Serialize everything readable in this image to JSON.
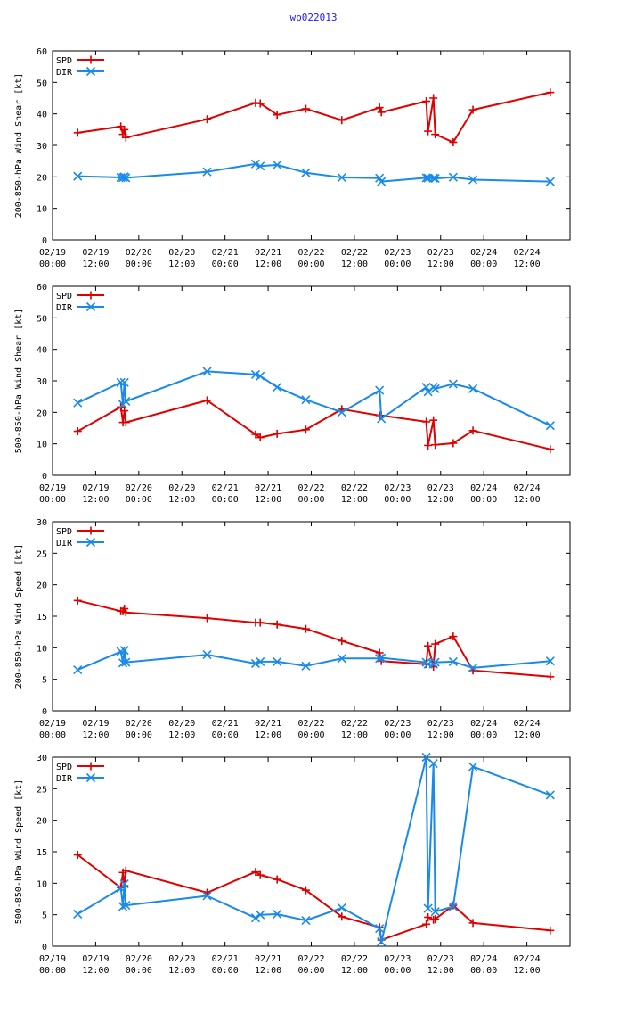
{
  "title": "wp022013",
  "colors": {
    "spd": "#e00000",
    "dir": "#1a8ae8",
    "axis": "#000000",
    "title": "#1a1aff"
  },
  "x_axis": {
    "min": 0,
    "max": 144,
    "ticks": [
      {
        "value": 0,
        "date": "02/19",
        "time": "00:00"
      },
      {
        "value": 12,
        "date": "02/19",
        "time": "12:00"
      },
      {
        "value": 24,
        "date": "02/20",
        "time": "00:00"
      },
      {
        "value": 36,
        "date": "02/20",
        "time": "12:00"
      },
      {
        "value": 48,
        "date": "02/21",
        "time": "00:00"
      },
      {
        "value": 60,
        "date": "02/21",
        "time": "12:00"
      },
      {
        "value": 72,
        "date": "02/22",
        "time": "00:00"
      },
      {
        "value": 84,
        "date": "02/22",
        "time": "12:00"
      },
      {
        "value": 96,
        "date": "02/23",
        "time": "00:00"
      },
      {
        "value": 108,
        "date": "02/23",
        "time": "12:00"
      },
      {
        "value": 120,
        "date": "02/24",
        "time": "00:00"
      },
      {
        "value": 132,
        "date": "02/24",
        "time": "12:00"
      }
    ]
  },
  "chart_data": [
    {
      "type": "line",
      "ylabel": "200-850-hPa Wind Shear [kt]",
      "ylim": [
        0,
        60
      ],
      "yticks": [
        0,
        10,
        20,
        30,
        40,
        50,
        60
      ],
      "legend": [
        "SPD",
        "DIR"
      ],
      "series": [
        {
          "name": "SPD",
          "marker": "plus",
          "x": [
            7,
            19,
            19.6,
            20,
            20.4,
            43,
            56.5,
            57.8,
            62.5,
            70.5,
            80.5,
            91,
            91.5,
            104,
            104.5,
            106,
            106.5,
            111.5,
            117,
            138.5
          ],
          "y": [
            34,
            36,
            33.5,
            35,
            32.5,
            38.3,
            43.5,
            43.3,
            39.7,
            41.6,
            38,
            42,
            40.5,
            44,
            34.5,
            45,
            33.5,
            31,
            41.3,
            46.8
          ]
        },
        {
          "name": "DIR",
          "marker": "x",
          "x": [
            7,
            19,
            19.6,
            20,
            20.4,
            43,
            56.5,
            57.8,
            62.5,
            70.5,
            80.5,
            91,
            91.5,
            104,
            104.5,
            106,
            106.5,
            111.5,
            117,
            138.5
          ],
          "y": [
            20.2,
            19.8,
            19.8,
            20,
            19.7,
            21.6,
            24.1,
            23.4,
            23.8,
            21.3,
            19.8,
            19.6,
            18.5,
            19.7,
            19.6,
            19.6,
            19.5,
            19.9,
            19.1,
            18.5
          ]
        }
      ]
    },
    {
      "type": "line",
      "ylabel": "500-850-hPa Wind Shear [kt]",
      "ylim": [
        0,
        60
      ],
      "yticks": [
        0,
        10,
        20,
        30,
        40,
        50,
        60
      ],
      "legend": [
        "SPD",
        "DIR"
      ],
      "series": [
        {
          "name": "SPD",
          "marker": "plus",
          "x": [
            7,
            19,
            19.6,
            20,
            20.4,
            43,
            56.5,
            57.8,
            62.5,
            70.5,
            80.5,
            91,
            91.5,
            104,
            104.5,
            106,
            106.5,
            111.5,
            117,
            138.5
          ],
          "y": [
            14,
            21.7,
            16.8,
            20.5,
            16.8,
            23.8,
            13,
            12,
            13.2,
            14.5,
            21,
            19,
            19,
            17,
            9.5,
            17.5,
            9.7,
            10.2,
            14.2,
            8.3
          ]
        },
        {
          "name": "DIR",
          "marker": "x",
          "x": [
            7,
            19,
            19.6,
            20,
            20.4,
            43,
            56.5,
            57.8,
            62.5,
            70.5,
            80.5,
            91,
            91.5,
            104,
            104.5,
            106,
            106.5,
            111.5,
            117,
            138.5
          ],
          "y": [
            23,
            29.5,
            22.5,
            29.5,
            23.5,
            33,
            32,
            31.5,
            28,
            24,
            20,
            27,
            18,
            28,
            26.5,
            28,
            27.5,
            29,
            27.5,
            15.8
          ]
        }
      ]
    },
    {
      "type": "line",
      "ylabel": "200-850-hPa Wind Speed [kt]",
      "ylim": [
        0,
        30
      ],
      "yticks": [
        0,
        5,
        10,
        15,
        20,
        25,
        30
      ],
      "legend": [
        "SPD",
        "DIR"
      ],
      "series": [
        {
          "name": "SPD",
          "marker": "plus",
          "x": [
            7,
            19,
            19.6,
            20,
            20.4,
            43,
            56.5,
            57.8,
            62.5,
            70.5,
            80.5,
            91,
            91.5,
            104,
            104.5,
            106,
            106.5,
            111.5,
            117,
            138.5
          ],
          "y": [
            17.5,
            15.8,
            15.8,
            16.2,
            15.6,
            14.7,
            14,
            14,
            13.7,
            13,
            11.1,
            9.2,
            7.9,
            7.4,
            10.3,
            7,
            10.6,
            11.8,
            6.4,
            5.4
          ]
        },
        {
          "name": "DIR",
          "marker": "x",
          "x": [
            7,
            19,
            19.6,
            20,
            20.4,
            43,
            56.5,
            57.8,
            62.5,
            70.5,
            80.5,
            91,
            91.5,
            104,
            104.5,
            106,
            106.5,
            111.5,
            117,
            138.5
          ],
          "y": [
            6.5,
            9.4,
            7.6,
            9.6,
            7.7,
            8.9,
            7.5,
            7.8,
            7.8,
            7.1,
            8.3,
            8.3,
            8.4,
            7.7,
            7.4,
            7.4,
            7.7,
            7.8,
            6.8,
            7.9
          ]
        }
      ]
    },
    {
      "type": "line",
      "ylabel": "500-850-hPa Wind Speed [kt]",
      "ylim": [
        0,
        30
      ],
      "yticks": [
        0,
        5,
        10,
        15,
        20,
        25,
        30
      ],
      "legend": [
        "SPD",
        "DIR"
      ],
      "series": [
        {
          "name": "SPD",
          "marker": "plus",
          "x": [
            7,
            19,
            19.6,
            20,
            20.4,
            43,
            56.5,
            57.8,
            62.5,
            70.5,
            80.5,
            91,
            91.5,
            104,
            104.5,
            106,
            106.5,
            111.5,
            117,
            138.5
          ],
          "y": [
            14.5,
            9.3,
            11.7,
            9.6,
            12,
            8.5,
            11.8,
            11.3,
            10.6,
            8.9,
            4.7,
            3,
            1,
            3.5,
            4.6,
            4.2,
            4.3,
            6.5,
            3.7,
            2.5
          ]
        },
        {
          "name": "DIR",
          "marker": "x",
          "x": [
            7,
            19,
            19.6,
            20,
            20.4,
            43,
            56.5,
            57.8,
            62.5,
            70.5,
            80.5,
            91,
            91.5,
            104,
            104.5,
            106,
            106.5,
            111.5,
            117,
            138.5
          ],
          "y": [
            5.1,
            9.2,
            6.3,
            9.9,
            6.5,
            8,
            4.5,
            5,
            5.1,
            4.1,
            6.1,
            2.8,
            0.7,
            30,
            6,
            29,
            5.5,
            6.3,
            28.5,
            24
          ]
        }
      ]
    }
  ]
}
